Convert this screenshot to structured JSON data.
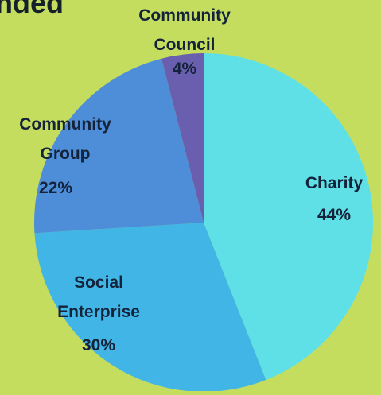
{
  "chart_data": {
    "type": "pie",
    "title_fragment": "nded",
    "slices": [
      {
        "label": "Charity",
        "value": 44,
        "percent_label": "44%",
        "color": "#5fe0e6"
      },
      {
        "label": "Social Enterprise",
        "value": 30,
        "percent_label": "30%",
        "color": "#41b6e6"
      },
      {
        "label": "Community Group",
        "value": 22,
        "percent_label": "22%",
        "color": "#4e8ed8"
      },
      {
        "label": "Community Council",
        "value": 4,
        "percent_label": "4%",
        "color": "#6a5fae"
      }
    ],
    "legend": "none",
    "background": "#c5dd5f"
  }
}
